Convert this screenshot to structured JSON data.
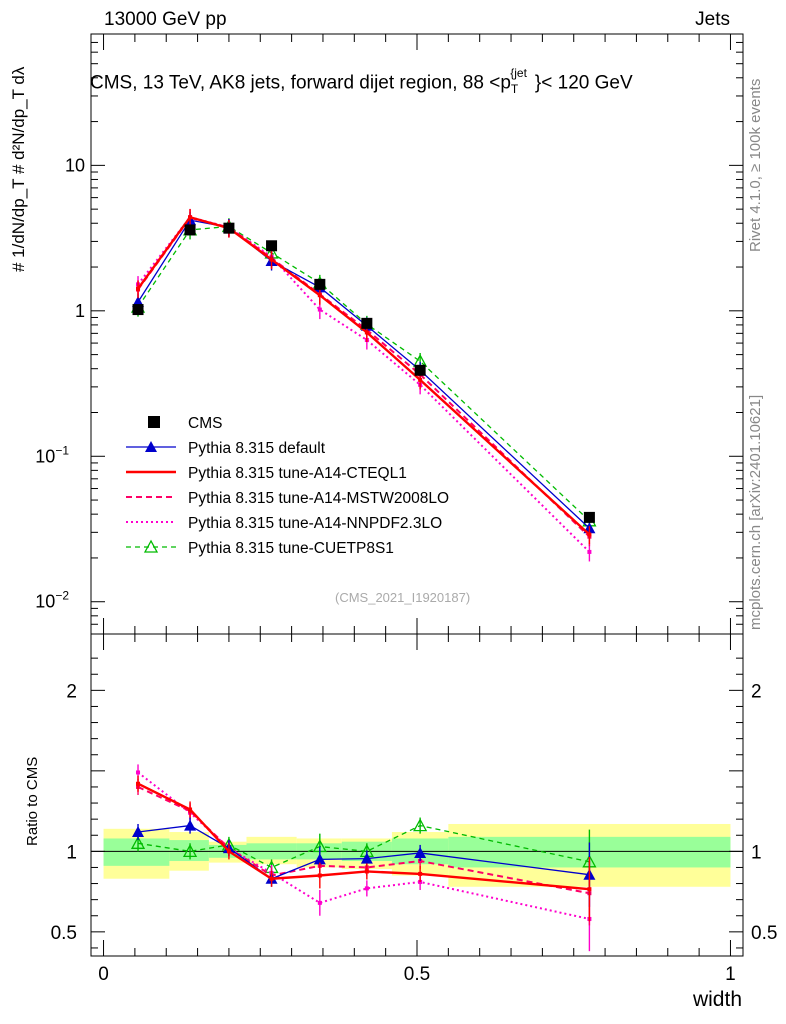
{
  "header": {
    "left": "13000 GeV pp",
    "right": "Jets",
    "title": "CMS, 13 TeV, AK8 jets, forward dijet region, 88 <p",
    "title_sub": "T",
    "title_sup": "{jet",
    "title_end": "}< 120 GeV"
  },
  "side_labels": {
    "rivet": "Rivet 4.1.0, ≥ 100k events",
    "mcplots": "mcplots.cern.ch [arXiv:2401.10621]"
  },
  "watermark": "(CMS_2021_I1920187)",
  "colors": {
    "cms": "#000000",
    "default": "#0000cc",
    "cteql1": "#ff0000",
    "mstw": "#ff0066",
    "nnpdf": "#ff00cc",
    "cuetp8s1": "#00bb00",
    "band_inner": "#99ff99",
    "band_outer": "#ffff99"
  },
  "chart_data": {
    "type": "line",
    "xlabel": "width",
    "ylabel_top": "# 1/dN/dp_T # d²N/dp_T dλ",
    "ylabel_ratio": "Ratio to CMS",
    "x": [
      0.055,
      0.138,
      0.2,
      0.268,
      0.345,
      0.42,
      0.505,
      0.775
    ],
    "xlim": [
      -0.02,
      1.02
    ],
    "ylim_main_log": [
      0.006,
      80
    ],
    "ylim_ratio": [
      0.35,
      2.35
    ],
    "main_y_ticks": [
      "10^{-2}",
      "10^{-1}",
      "1",
      "10"
    ],
    "ratio_y_ticks": [
      "0.5",
      "1",
      "2"
    ],
    "x_ticks": [
      "0",
      "0.5",
      "1"
    ],
    "series": [
      {
        "name": "CMS",
        "key": "cms",
        "style": "square",
        "values": [
          1.02,
          3.6,
          3.7,
          2.8,
          1.52,
          0.82,
          0.39,
          0.038
        ]
      },
      {
        "name": "Pythia 8.315 default",
        "key": "default",
        "style": "solid-triangle",
        "values": [
          1.15,
          4.2,
          3.75,
          2.2,
          1.45,
          0.79,
          0.39,
          0.032
        ]
      },
      {
        "name": "Pythia 8.315 tune-A14-CTEQL1",
        "key": "cteql1",
        "style": "solid-thick",
        "values": [
          1.42,
          4.4,
          3.7,
          2.25,
          1.28,
          0.71,
          0.335,
          0.029
        ]
      },
      {
        "name": "Pythia 8.315 tune-A14-MSTW2008LO",
        "key": "mstw",
        "style": "dashed",
        "values": [
          1.4,
          4.35,
          3.75,
          2.3,
          1.3,
          0.74,
          0.365,
          0.028
        ]
      },
      {
        "name": "Pythia 8.315 tune-A14-NNPDF2.3LO",
        "key": "nnpdf",
        "style": "dotted",
        "values": [
          1.52,
          4.4,
          3.75,
          2.35,
          1.02,
          0.63,
          0.31,
          0.022
        ]
      },
      {
        "name": "Pythia 8.315 tune-CUETP8S1",
        "key": "cuetp8s1",
        "style": "dashed-open-triangle",
        "values": [
          1.06,
          3.6,
          3.8,
          2.5,
          1.55,
          0.81,
          0.45,
          0.036
        ]
      }
    ],
    "ratio_series": [
      {
        "key": "default",
        "values": [
          1.12,
          1.16,
          1.02,
          0.83,
          0.95,
          0.955,
          0.99,
          0.855
        ]
      },
      {
        "key": "cteql1",
        "values": [
          1.42,
          1.26,
          1.0,
          0.83,
          0.85,
          0.875,
          0.86,
          0.765
        ]
      },
      {
        "key": "mstw",
        "values": [
          1.4,
          1.25,
          1.02,
          0.85,
          0.91,
          0.9,
          0.94,
          0.74
        ]
      },
      {
        "key": "nnpdf",
        "values": [
          1.49,
          1.24,
          1.02,
          0.865,
          0.68,
          0.77,
          0.81,
          0.58
        ]
      },
      {
        "key": "cuetp8s1",
        "values": [
          1.05,
          1.0,
          1.04,
          0.9,
          1.03,
          1.0,
          1.16,
          0.935
        ]
      }
    ],
    "bands": [
      {
        "x0": 0.0,
        "x1": 0.105,
        "inner": [
          0.91,
          1.08
        ],
        "outer": [
          0.83,
          1.14
        ]
      },
      {
        "x0": 0.105,
        "x1": 0.168,
        "inner": [
          0.94,
          1.07
        ],
        "outer": [
          0.88,
          1.12
        ]
      },
      {
        "x0": 0.168,
        "x1": 0.228,
        "inner": [
          0.96,
          1.04
        ],
        "outer": [
          0.93,
          1.06
        ]
      },
      {
        "x0": 0.228,
        "x1": 0.308,
        "inner": [
          0.95,
          1.05
        ],
        "outer": [
          0.92,
          1.09
        ]
      },
      {
        "x0": 0.308,
        "x1": 0.38,
        "inner": [
          0.95,
          1.05
        ],
        "outer": [
          0.9,
          1.08
        ]
      },
      {
        "x0": 0.38,
        "x1": 0.46,
        "inner": [
          0.94,
          1.06
        ],
        "outer": [
          0.89,
          1.08
        ]
      },
      {
        "x0": 0.46,
        "x1": 0.55,
        "inner": [
          0.92,
          1.08
        ],
        "outer": [
          0.85,
          1.12
        ]
      },
      {
        "x0": 0.55,
        "x1": 1.0,
        "inner": [
          0.9,
          1.09
        ],
        "outer": [
          0.78,
          1.17
        ]
      }
    ]
  }
}
